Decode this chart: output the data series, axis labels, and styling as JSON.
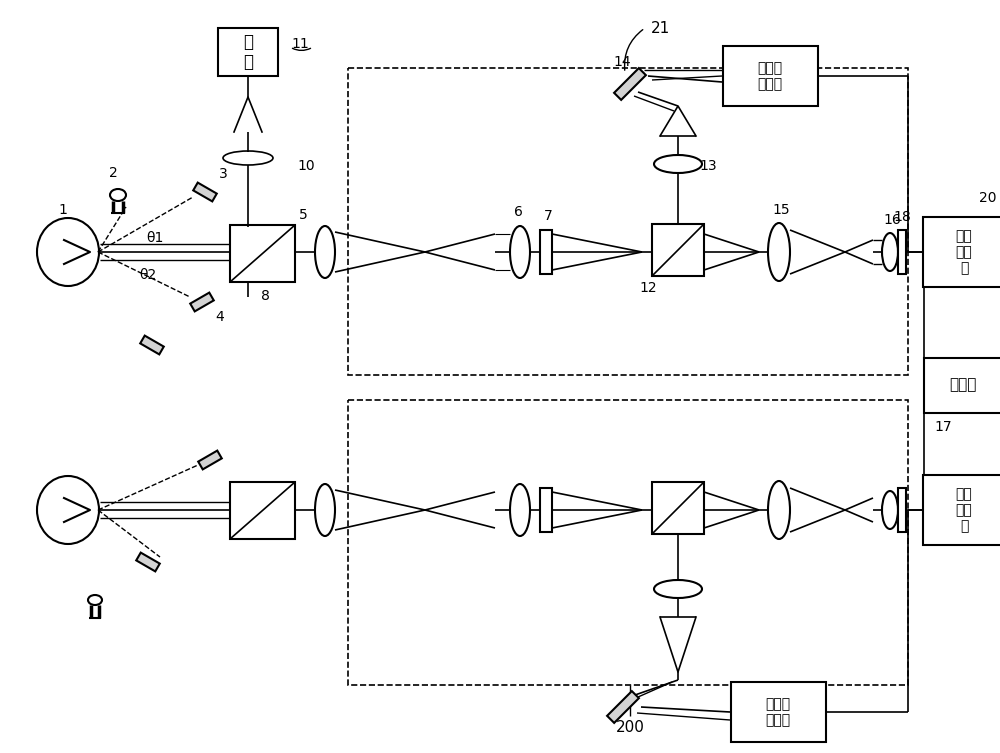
{
  "bg_color": "#ffffff",
  "line_color": "#000000",
  "figsize": [
    10.0,
    7.53
  ],
  "dpi": 100,
  "label_21": "21",
  "label_200": "200",
  "label_11": "11",
  "label_10": "10",
  "label_1": "1",
  "label_2": "2",
  "label_3": "3",
  "label_4": "4",
  "label_5": "5",
  "label_6": "6",
  "label_7": "7",
  "label_8": "8",
  "label_12": "12",
  "label_13": "13",
  "label_14": "14",
  "label_15": "15",
  "label_16": "16",
  "label_17": "17",
  "label_18": "18",
  "label_20": "20",
  "label_theta1": "θ1",
  "label_theta2": "θ2",
  "guang_yuan": "光源",
  "shi_biao": "视标显\n示装置",
  "guang_dian": "光电\n探测\n器",
  "ji_suan_ji": "计算机"
}
